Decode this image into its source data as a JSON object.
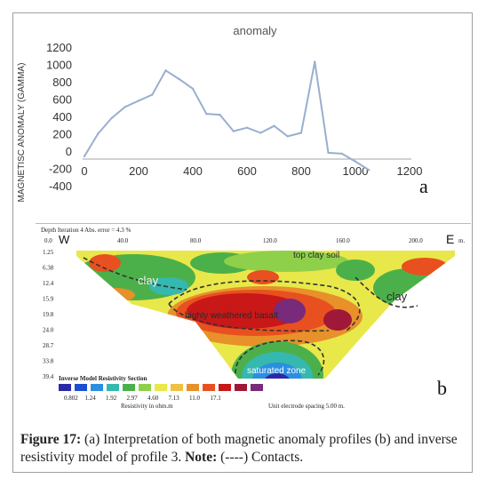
{
  "chart_data": [
    {
      "type": "line",
      "title": "anomaly",
      "ylabel": "MAGNETISC ANOMALY (GAMMA)",
      "xlim": [
        0,
        1200
      ],
      "ylim": [
        -400,
        1200
      ],
      "x_ticks": [
        "0",
        "200",
        "400",
        "600",
        "800",
        "1000",
        "1200"
      ],
      "y_ticks": [
        "1200",
        "1000",
        "800",
        "600",
        "400",
        "200",
        "0",
        "-200",
        "-400"
      ],
      "series": [
        {
          "x": [
            0,
            50,
            100,
            150,
            200,
            250,
            300,
            350,
            400,
            450,
            500,
            550,
            600,
            650,
            700,
            750,
            800,
            850,
            900,
            950,
            1000,
            1050
          ],
          "y": [
            -60,
            200,
            380,
            510,
            580,
            650,
            930,
            830,
            720,
            430,
            420,
            230,
            270,
            210,
            290,
            170,
            210,
            1030,
            -20,
            -30,
            -120,
            -220
          ]
        }
      ],
      "panel_label": "a",
      "color": "#9aaed0"
    },
    {
      "type": "heatmap",
      "header_left": "Depth   Iteration 4 Abs. error = 4.3 %",
      "header_unit": "m.",
      "x_ticks": [
        "0.0",
        "40.0",
        "80.0",
        "120.0",
        "160.0",
        "200.0"
      ],
      "depth_ticks": [
        "1.25",
        "6.38",
        "12.4",
        "15.9",
        "19.8",
        "24.0",
        "28.7",
        "33.8",
        "39.4"
      ],
      "west_label": "W",
      "east_label": "E",
      "annotations": [
        "top clay soil",
        "clay",
        "clay",
        "highly weathered basalt",
        "saturated zone"
      ],
      "legend_title": "Inverse Model Resistivity Section",
      "legend_values": [
        "0.802",
        "1.24",
        "1.92",
        "2.97",
        "4.60",
        "7.13",
        "11.0",
        "17.1"
      ],
      "legend_colors": [
        "#2a2aa8",
        "#1c4fd0",
        "#2b8fe0",
        "#34b8b0",
        "#4cb04a",
        "#8fd04a",
        "#e8e84a",
        "#f0c040",
        "#e8902a",
        "#e85020",
        "#c81818",
        "#a01838",
        "#7a2a7a"
      ],
      "legend_unit": "Resistivity in ohm.m",
      "spacing_note": "Unit electrode spacing 5.00 m.",
      "panel_label": "b"
    }
  ],
  "caption": {
    "label": "Figure 17:",
    "text_1": " (a) Interpretation of both magnetic anomaly profiles (b) and inverse resistivity model of profile 3. ",
    "note_label": "Note:",
    "text_2": " (----) Contacts."
  }
}
